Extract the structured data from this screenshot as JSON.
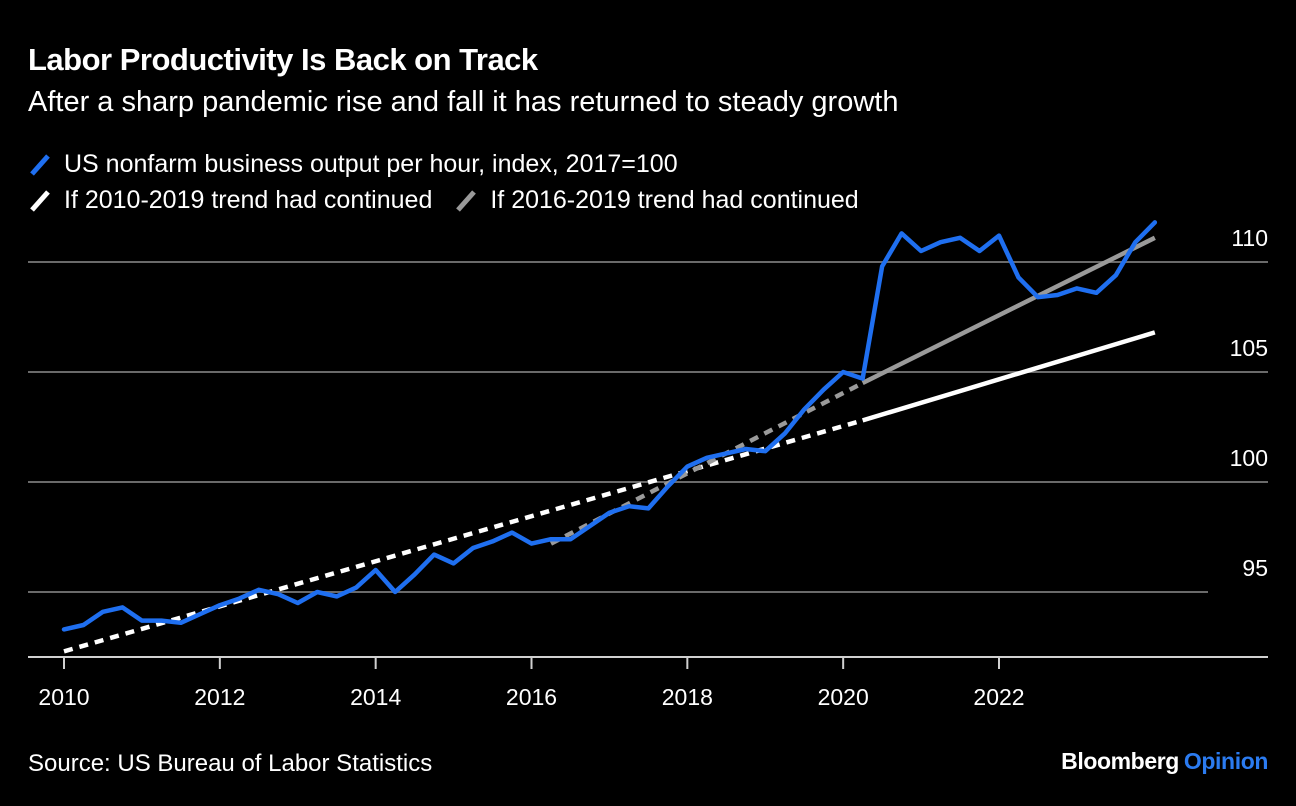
{
  "header": {
    "title": "Labor Productivity Is Back on Track",
    "subtitle": "After a sharp pandemic rise and fall it has returned to steady growth"
  },
  "legend": [
    {
      "label": "US nonfarm business output per hour, index, 2017=100",
      "color": "#1f6ff0",
      "style": "solid"
    },
    {
      "label": "If 2010-2019 trend had continued",
      "color": "#ffffff",
      "style": "solid"
    },
    {
      "label": "If 2016-2019 trend had continued",
      "color": "#9a9a9a",
      "style": "solid"
    }
  ],
  "footer": {
    "source": "Source: US Bureau of Labor Statistics",
    "brand_main": "Bloomberg",
    "brand_accent": "Opinion"
  },
  "chart_data": {
    "type": "line",
    "title": "Labor Productivity Is Back on Track",
    "subtitle": "After a sharp pandemic rise and fall it has returned to steady growth",
    "xlabel": "",
    "ylabel": "",
    "xlim": [
      2009.9,
      2024.4
    ],
    "ylim": [
      92.0,
      111.5
    ],
    "x_ticks": [
      2010,
      2012,
      2014,
      2016,
      2018,
      2020,
      2022
    ],
    "x_tick_labels": [
      "2010",
      "2012",
      "2014",
      "2016",
      "2018",
      "2020",
      "2022"
    ],
    "y_ticks": [
      95,
      100,
      105,
      110
    ],
    "y_tick_labels": [
      "95",
      "100",
      "105",
      "110"
    ],
    "y_axis_side": "right",
    "grid": true,
    "legend_position": "top-left",
    "series": [
      {
        "name": "US nonfarm business output per hour, index, 2017=100",
        "color": "#1f6ff0",
        "style": "solid",
        "x": [
          2010.0,
          2010.25,
          2010.5,
          2010.75,
          2011.0,
          2011.25,
          2011.5,
          2011.75,
          2012.0,
          2012.25,
          2012.5,
          2012.75,
          2013.0,
          2013.25,
          2013.5,
          2013.75,
          2014.0,
          2014.25,
          2014.5,
          2014.75,
          2015.0,
          2015.25,
          2015.5,
          2015.75,
          2016.0,
          2016.25,
          2016.5,
          2016.75,
          2017.0,
          2017.25,
          2017.5,
          2017.75,
          2018.0,
          2018.25,
          2018.5,
          2018.75,
          2019.0,
          2019.25,
          2019.5,
          2019.75,
          2020.0,
          2020.25,
          2020.5,
          2020.75,
          2021.0,
          2021.25,
          2021.5,
          2021.75,
          2022.0,
          2022.25,
          2022.5,
          2022.75,
          2023.0,
          2023.25,
          2023.5,
          2023.75,
          2024.0
        ],
        "values": [
          93.3,
          93.5,
          94.1,
          94.3,
          93.7,
          93.7,
          93.6,
          94.0,
          94.4,
          94.7,
          95.1,
          94.9,
          94.5,
          95.0,
          94.8,
          95.2,
          96.0,
          95.0,
          95.8,
          96.7,
          96.3,
          97.0,
          97.3,
          97.7,
          97.2,
          97.4,
          97.4,
          98.0,
          98.6,
          98.9,
          98.8,
          99.8,
          100.7,
          101.1,
          101.3,
          101.5,
          101.4,
          102.2,
          103.3,
          104.2,
          105.0,
          104.7,
          109.8,
          111.3,
          110.5,
          110.9,
          111.1,
          110.5,
          111.2,
          109.3,
          108.4,
          108.5,
          108.8,
          108.6,
          109.4,
          110.9,
          111.8
        ]
      },
      {
        "name": "If 2010-2019 trend had continued",
        "color": "#ffffff",
        "segments": [
          {
            "style": "dashed",
            "x": [
              2010.0,
              2020.25
            ],
            "values": [
              92.3,
              102.8
            ]
          },
          {
            "style": "solid",
            "x": [
              2020.25,
              2024.0
            ],
            "values": [
              102.8,
              106.8
            ]
          }
        ]
      },
      {
        "name": "If 2016-2019 trend had continued",
        "color": "#9a9a9a",
        "segments": [
          {
            "style": "dashed",
            "x": [
              2016.25,
              2020.25
            ],
            "values": [
              97.2,
              104.5
            ]
          },
          {
            "style": "solid",
            "x": [
              2020.25,
              2024.0
            ],
            "values": [
              104.5,
              111.1
            ]
          }
        ]
      }
    ]
  }
}
